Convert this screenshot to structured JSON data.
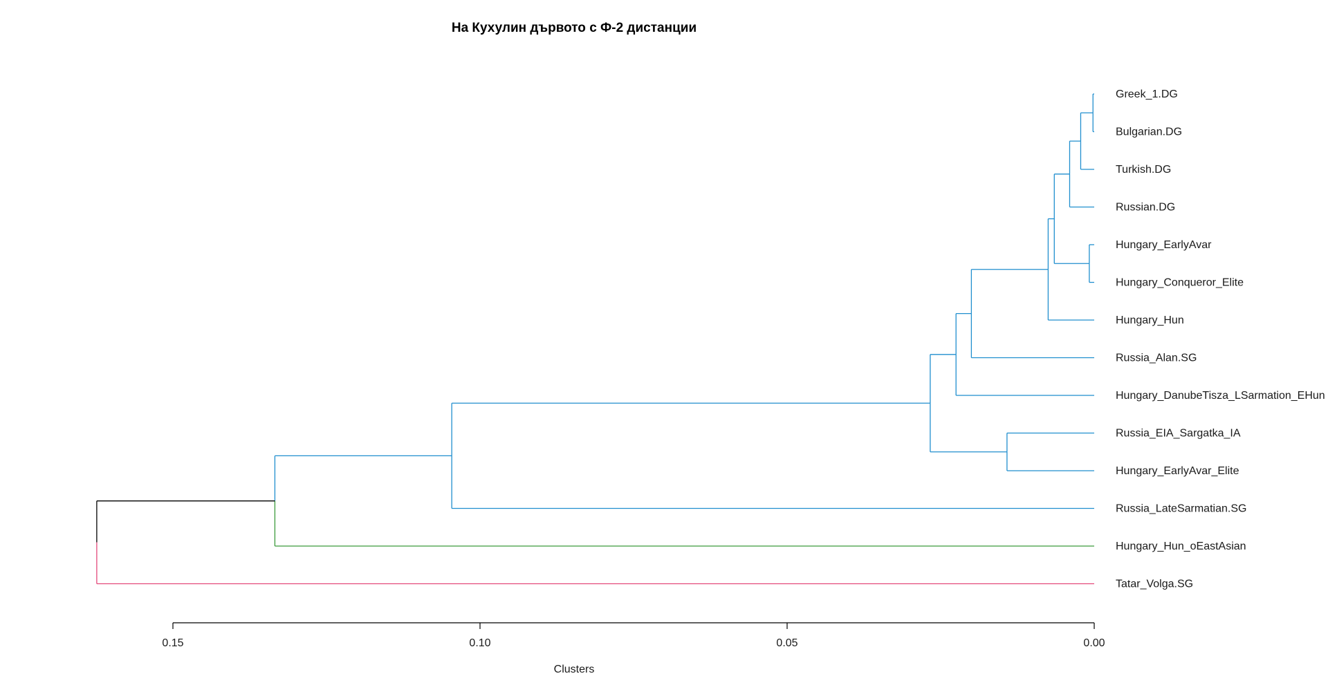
{
  "chart_data": {
    "type": "dendrogram",
    "title": "На Кухулин дървото с Ф-2 дистанции",
    "xlabel": "Clusters",
    "xlim": [
      0.17,
      0.0
    ],
    "ticks": [
      "0.15",
      "0.10",
      "0.05",
      "0.00"
    ],
    "tick_values": [
      0.15,
      0.1,
      0.05,
      0.0
    ],
    "leaves": [
      "Greek_1.DG",
      "Bulgarian.DG",
      "Turkish.DG",
      "Russian.DG",
      "Hungary_EarlyAvar",
      "Hungary_Conqueror_Elite",
      "Hungary_Hun",
      "Russia_Alan.SG",
      "Hungary_DanubeTisza_LSarmation_EHun",
      "Russia_EIA_Sargatka_IA",
      "Hungary_EarlyAvar_Elite",
      "Russia_LateSarmatian.SG",
      "Hungary_Hun_oEastAsian",
      "Tatar_Volga.SG"
    ],
    "merges": [
      {
        "id": "m1",
        "children": [
          "L0",
          "L1"
        ],
        "height": 0.0002,
        "color": "#1f8ece"
      },
      {
        "id": "m2",
        "children": [
          "m1",
          "L2"
        ],
        "height": 0.0022,
        "color": "#1f8ece"
      },
      {
        "id": "m3",
        "children": [
          "m2",
          "L3"
        ],
        "height": 0.004,
        "color": "#1f8ece"
      },
      {
        "id": "m4",
        "children": [
          "L4",
          "L5"
        ],
        "height": 0.0008,
        "color": "#1f8ece"
      },
      {
        "id": "m5",
        "children": [
          "m3",
          "m4"
        ],
        "height": 0.0065,
        "color": "#1f8ece"
      },
      {
        "id": "m6",
        "children": [
          "m5",
          "L6"
        ],
        "height": 0.0075,
        "color": "#1f8ece"
      },
      {
        "id": "m7",
        "children": [
          "m6",
          "L7"
        ],
        "height": 0.02,
        "color": "#1f8ece"
      },
      {
        "id": "m8",
        "children": [
          "m7",
          "L8"
        ],
        "height": 0.0225,
        "color": "#1f8ece"
      },
      {
        "id": "m9",
        "children": [
          "L9",
          "L10"
        ],
        "height": 0.0142,
        "color": "#1f8ece"
      },
      {
        "id": "m10",
        "children": [
          "m8",
          "m9"
        ],
        "height": 0.0267,
        "color": "#1f8ece"
      },
      {
        "id": "m11",
        "children": [
          "m10",
          "L11"
        ],
        "height": 0.1046,
        "color": "#1f8ece"
      },
      {
        "id": "m12",
        "children": [
          "m11",
          "L12"
        ],
        "height": 0.1334,
        "color": "#3a9a3a"
      },
      {
        "id": "m13",
        "children": [
          "m12",
          "L13"
        ],
        "height": 0.1624,
        "color": "#000000"
      }
    ],
    "leaf_colors": [
      "#1f8ece",
      "#1f8ece",
      "#1f8ece",
      "#1f8ece",
      "#1f8ece",
      "#1f8ece",
      "#1f8ece",
      "#1f8ece",
      "#1f8ece",
      "#1f8ece",
      "#1f8ece",
      "#1f8ece",
      "#3a9a3a",
      "#e4487a"
    ],
    "branch_colors": {
      "upper_root_branch": "#000000",
      "lower_root_branch": "#e4487a",
      "hun_east_asian_branch": "#3a9a3a"
    }
  }
}
